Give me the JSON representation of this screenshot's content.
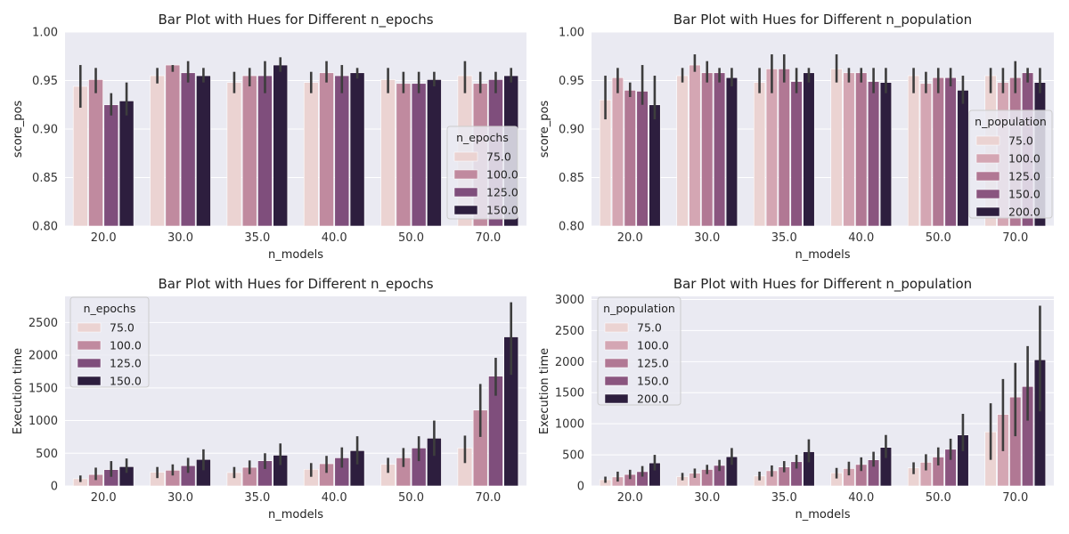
{
  "chart_data": [
    {
      "type": "bar",
      "title": "Bar Plot with Hues for Different n_epochs",
      "xlabel": "n_models",
      "ylabel": "score_pos",
      "ylim": [
        0.8,
        1.0
      ],
      "yticks": [
        "0.80",
        "0.85",
        "0.90",
        "0.95",
        "1.00"
      ],
      "categories": [
        "20.0",
        "30.0",
        "35.0",
        "40.0",
        "50.0",
        "70.0"
      ],
      "legend": {
        "title": "n_epochs",
        "placement": "right"
      },
      "grid": true,
      "series": [
        {
          "name": "75.0",
          "color": "#ebd3d2",
          "values": [
            0.944,
            0.955,
            0.948,
            0.948,
            0.951,
            0.955
          ],
          "err_low": [
            0.922,
            0.947,
            0.937,
            0.937,
            0.937,
            0.937
          ],
          "err_high": [
            0.966,
            0.963,
            0.959,
            0.959,
            0.963,
            0.97
          ]
        },
        {
          "name": "100.0",
          "color": "#c08a9f",
          "values": [
            0.951,
            0.966,
            0.955,
            0.958,
            0.947,
            0.947
          ],
          "err_low": [
            0.937,
            0.959,
            0.944,
            0.948,
            0.937,
            0.937
          ],
          "err_high": [
            0.963,
            0.966,
            0.963,
            0.97,
            0.959,
            0.959
          ]
        },
        {
          "name": "125.0",
          "color": "#7f4e7c",
          "values": [
            0.925,
            0.958,
            0.955,
            0.955,
            0.947,
            0.951
          ],
          "err_low": [
            0.914,
            0.948,
            0.937,
            0.937,
            0.937,
            0.937
          ],
          "err_high": [
            0.937,
            0.97,
            0.97,
            0.966,
            0.959,
            0.959
          ]
        },
        {
          "name": "150.0",
          "color": "#2d1e3e",
          "values": [
            0.929,
            0.955,
            0.966,
            0.958,
            0.951,
            0.955
          ],
          "err_low": [
            0.914,
            0.948,
            0.959,
            0.952,
            0.944,
            0.948
          ],
          "err_high": [
            0.948,
            0.963,
            0.974,
            0.963,
            0.959,
            0.963
          ]
        }
      ]
    },
    {
      "type": "bar",
      "title": "Bar Plot with Hues for Different n_population",
      "xlabel": "n_models",
      "ylabel": "score_pos",
      "ylim": [
        0.8,
        1.0
      ],
      "yticks": [
        "0.80",
        "0.85",
        "0.90",
        "0.95",
        "1.00"
      ],
      "categories": [
        "20.0",
        "30.0",
        "35.0",
        "40.0",
        "50.0",
        "70.0"
      ],
      "legend": {
        "title": "n_population",
        "placement": "right"
      },
      "grid": true,
      "series": [
        {
          "name": "75.0",
          "color": "#ebd3d2",
          "values": [
            0.93,
            0.955,
            0.948,
            0.962,
            0.955,
            0.955
          ],
          "err_low": [
            0.91,
            0.948,
            0.937,
            0.948,
            0.937,
            0.937
          ],
          "err_high": [
            0.955,
            0.963,
            0.963,
            0.977,
            0.963,
            0.963
          ]
        },
        {
          "name": "100.0",
          "color": "#d4a6b3",
          "values": [
            0.953,
            0.966,
            0.962,
            0.958,
            0.947,
            0.948
          ],
          "err_low": [
            0.937,
            0.959,
            0.937,
            0.948,
            0.937,
            0.937
          ],
          "err_high": [
            0.963,
            0.977,
            0.977,
            0.963,
            0.959,
            0.963
          ]
        },
        {
          "name": "125.0",
          "color": "#b17894",
          "values": [
            0.94,
            0.958,
            0.962,
            0.958,
            0.953,
            0.953
          ],
          "err_low": [
            0.933,
            0.948,
            0.948,
            0.948,
            0.937,
            0.937
          ],
          "err_high": [
            0.948,
            0.97,
            0.977,
            0.963,
            0.963,
            0.97
          ]
        },
        {
          "name": "150.0",
          "color": "#8a557f",
          "values": [
            0.939,
            0.958,
            0.949,
            0.949,
            0.953,
            0.958
          ],
          "err_low": [
            0.925,
            0.948,
            0.937,
            0.937,
            0.944,
            0.948
          ],
          "err_high": [
            0.966,
            0.963,
            0.963,
            0.963,
            0.963,
            0.963
          ]
        },
        {
          "name": "200.0",
          "color": "#2d1e3e",
          "values": [
            0.925,
            0.953,
            0.958,
            0.948,
            0.94,
            0.948
          ],
          "err_low": [
            0.91,
            0.944,
            0.948,
            0.937,
            0.926,
            0.937
          ],
          "err_high": [
            0.955,
            0.963,
            0.963,
            0.963,
            0.955,
            0.963
          ]
        }
      ]
    },
    {
      "type": "bar",
      "title": "Bar Plot with Hues for Different n_epochs",
      "xlabel": "n_models",
      "ylabel": "Execution time",
      "ylim": [
        0,
        2900
      ],
      "yticks": [
        "0",
        "500",
        "1000",
        "1500",
        "2000",
        "2500"
      ],
      "categories": [
        "20.0",
        "30.0",
        "35.0",
        "40.0",
        "50.0",
        "70.0"
      ],
      "legend": {
        "title": "n_epochs",
        "placement": "top-left"
      },
      "grid": true,
      "series": [
        {
          "name": "75.0",
          "color": "#ebd3d2",
          "values": [
            110,
            210,
            205,
            255,
            330,
            580
          ],
          "err_low": [
            60,
            120,
            120,
            140,
            200,
            350
          ],
          "err_high": [
            160,
            290,
            290,
            350,
            430,
            770
          ]
        },
        {
          "name": "100.0",
          "color": "#c08a9f",
          "values": [
            175,
            240,
            285,
            340,
            430,
            1160
          ],
          "err_low": [
            90,
            160,
            180,
            200,
            290,
            750
          ],
          "err_high": [
            280,
            330,
            390,
            460,
            580,
            1560
          ]
        },
        {
          "name": "125.0",
          "color": "#7f4e7c",
          "values": [
            250,
            310,
            385,
            430,
            580,
            1680
          ],
          "err_low": [
            140,
            200,
            260,
            280,
            380,
            1380
          ],
          "err_high": [
            380,
            430,
            500,
            590,
            760,
            1960
          ]
        },
        {
          "name": "150.0",
          "color": "#2d1e3e",
          "values": [
            295,
            405,
            470,
            540,
            730,
            2280
          ],
          "err_low": [
            200,
            240,
            320,
            330,
            460,
            1700
          ],
          "err_high": [
            420,
            560,
            650,
            760,
            1000,
            2810
          ]
        }
      ]
    },
    {
      "type": "bar",
      "title": "Bar Plot with Hues for Different n_population",
      "xlabel": "n_models",
      "ylabel": "Execution time",
      "ylim": [
        0,
        3050
      ],
      "yticks": [
        "0",
        "500",
        "1000",
        "1500",
        "2000",
        "2500",
        "3000"
      ],
      "categories": [
        "20.0",
        "30.0",
        "35.0",
        "40.0",
        "50.0",
        "70.0"
      ],
      "legend": {
        "title": "n_population",
        "placement": "top-left"
      },
      "grid": true,
      "series": [
        {
          "name": "75.0",
          "color": "#ebd3d2",
          "values": [
            100,
            150,
            160,
            210,
            290,
            870
          ],
          "err_low": [
            50,
            90,
            90,
            120,
            190,
            420
          ],
          "err_high": [
            150,
            210,
            230,
            290,
            380,
            1330
          ]
        },
        {
          "name": "100.0",
          "color": "#d4a6b3",
          "values": [
            145,
            205,
            245,
            280,
            380,
            1150
          ],
          "err_low": [
            70,
            130,
            150,
            170,
            250,
            560
          ],
          "err_high": [
            230,
            280,
            330,
            390,
            510,
            1720
          ]
        },
        {
          "name": "125.0",
          "color": "#b17894",
          "values": [
            185,
            265,
            305,
            345,
            465,
            1430
          ],
          "err_low": [
            110,
            190,
            220,
            240,
            330,
            800
          ],
          "err_high": [
            260,
            340,
            400,
            460,
            620,
            1980
          ]
        },
        {
          "name": "150.0",
          "color": "#8a557f",
          "values": [
            230,
            330,
            390,
            420,
            590,
            1600
          ],
          "err_low": [
            150,
            240,
            280,
            310,
            420,
            1050
          ],
          "err_high": [
            320,
            420,
            500,
            550,
            760,
            2250
          ]
        },
        {
          "name": "200.0",
          "color": "#2d1e3e",
          "values": [
            370,
            470,
            550,
            620,
            820,
            2030
          ],
          "err_low": [
            250,
            340,
            380,
            450,
            560,
            1200
          ],
          "err_high": [
            500,
            610,
            750,
            820,
            1160,
            2900
          ]
        }
      ]
    }
  ]
}
